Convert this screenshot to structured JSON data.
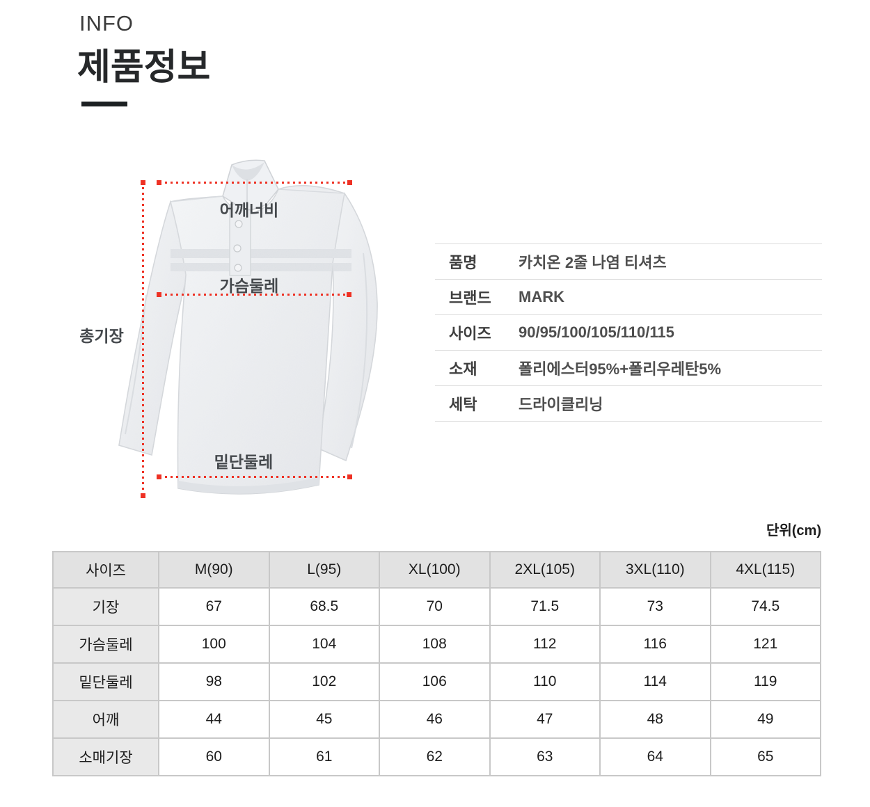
{
  "header": {
    "eyebrow": "INFO",
    "title": "제품정보"
  },
  "diagram": {
    "shirt_alt": "카치온 2줄 나염 티셔츠 측정 안내 이미지",
    "labels": {
      "shoulder": "어깨너비",
      "chest": "가슴둘레",
      "hem": "밑단둘레",
      "length": "총기장"
    }
  },
  "product_info": {
    "rows": [
      {
        "label": "품명",
        "value": "카치온 2줄 나염 티셔츠"
      },
      {
        "label": "브랜드",
        "value": "MARK"
      },
      {
        "label": "사이즈",
        "value": "90/95/100/105/110/115"
      },
      {
        "label": "소재",
        "value": "폴리에스터95%+폴리우레탄5%"
      },
      {
        "label": "세탁",
        "value": "드라이클리닝"
      }
    ]
  },
  "size_table": {
    "unit_note": "단위(cm)",
    "columns": [
      "사이즈",
      "M(90)",
      "L(95)",
      "XL(100)",
      "2XL(105)",
      "3XL(110)",
      "4XL(115)"
    ],
    "rows": [
      {
        "label": "기장",
        "values": [
          "67",
          "68.5",
          "70",
          "71.5",
          "73",
          "74.5"
        ]
      },
      {
        "label": "가슴둘레",
        "values": [
          "100",
          "104",
          "108",
          "112",
          "116",
          "121"
        ]
      },
      {
        "label": "밑단둘레",
        "values": [
          "98",
          "102",
          "106",
          "110",
          "114",
          "119"
        ]
      },
      {
        "label": "어깨",
        "values": [
          "44",
          "45",
          "46",
          "47",
          "48",
          "49"
        ]
      },
      {
        "label": "소매기장",
        "values": [
          "60",
          "61",
          "62",
          "63",
          "64",
          "65"
        ]
      }
    ]
  },
  "colors": {
    "accent_red": "#ee3124",
    "title_bar": "#1c2022",
    "table_border": "#c8c8c8",
    "table_header_bg": "#e2e2e2",
    "table_label_bg": "#e9e9e9"
  }
}
